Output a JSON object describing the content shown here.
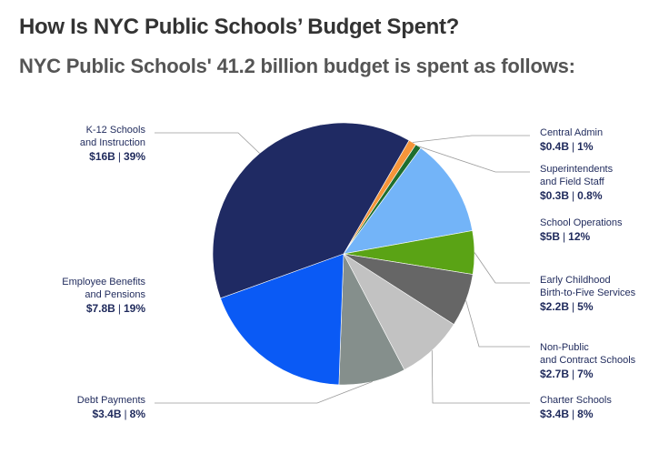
{
  "header": {
    "title": "How Is NYC Public Schools’ Budget Spent?",
    "subtitle": "NYC Public Schools' 41.2 billion budget is spent as follows:"
  },
  "chart_data": {
    "type": "pie",
    "title": "How Is NYC Public Schools’ Budget Spent?",
    "subtitle": "NYC Public Schools' 41.2 billion budget is spent as follows:",
    "total": "41.2 billion",
    "slices": [
      {
        "name": "Central Admin",
        "name_lines": [
          "Central Admin"
        ],
        "value_text": "$0.4B",
        "pct_text": "1%",
        "value": 0.4,
        "percent": 1,
        "color": "#f5953a"
      },
      {
        "name": "Superintendents and Field Staff",
        "name_lines": [
          "Superintendents",
          "and Field Staff"
        ],
        "value_text": "$0.3B",
        "pct_text": "0.8%",
        "value": 0.3,
        "percent": 0.8,
        "color": "#1e6e2e"
      },
      {
        "name": "School Operations",
        "name_lines": [
          "School Operations"
        ],
        "value_text": "$5B",
        "pct_text": "12%",
        "value": 5,
        "percent": 12,
        "color": "#73b4f8"
      },
      {
        "name": "Early Childhood Birth-to-Five Services",
        "name_lines": [
          "Early Childhood",
          "Birth-to-Five Services"
        ],
        "value_text": "$2.2B",
        "pct_text": "5%",
        "value": 2.2,
        "percent": 5,
        "color": "#5aa315"
      },
      {
        "name": "Non-Public and Contract Schools",
        "name_lines": [
          "Non-Public",
          "and Contract Schools"
        ],
        "value_text": "$2.7B",
        "pct_text": "7%",
        "value": 2.7,
        "percent": 7,
        "color": "#666666"
      },
      {
        "name": "Charter Schools",
        "name_lines": [
          "Charter Schools"
        ],
        "value_text": "$3.4B",
        "pct_text": "8%",
        "value": 3.4,
        "percent": 8,
        "color": "#c2c2c2"
      },
      {
        "name": "Debt Payments",
        "name_lines": [
          "Debt Payments"
        ],
        "value_text": "$3.4B",
        "pct_text": "8%",
        "value": 3.4,
        "percent": 8,
        "color": "#858f8c"
      },
      {
        "name": "Employee Benefits and Pensions",
        "name_lines": [
          "Employee Benefits",
          "and Pensions"
        ],
        "value_text": "$7.8B",
        "pct_text": "19%",
        "value": 7.8,
        "percent": 19,
        "color": "#0a5af5"
      },
      {
        "name": "K-12 Schools and Instruction",
        "name_lines": [
          "K-12 Schools",
          "and Instruction"
        ],
        "value_text": "$16B",
        "pct_text": "39%",
        "value": 16,
        "percent": 39,
        "color": "#1f2a63"
      }
    ],
    "start_angle_deg": 30,
    "direction": "clockwise"
  }
}
